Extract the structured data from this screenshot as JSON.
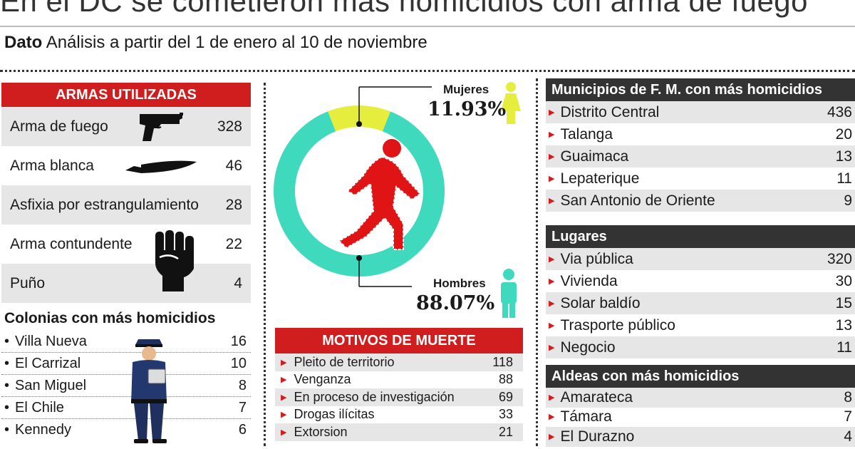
{
  "header": {
    "title": "En el DC se cometieron más homicidios con arma de fuego",
    "dato_label": "Dato",
    "dato_text": "Análisis a partir del 1 de enero al 10 de noviembre"
  },
  "armas": {
    "title": "ARMAS UTILIZADAS",
    "rows": [
      {
        "label": "Arma de fuego",
        "value": "328",
        "icon": "pistol-icon"
      },
      {
        "label": "Arma blanca",
        "value": "46",
        "icon": "knife-icon"
      },
      {
        "label": "Asfixia por estrangulamiento",
        "value": "28"
      },
      {
        "label": "Arma contundente",
        "value": "22",
        "icon": "fist-icon"
      },
      {
        "label": "Puño",
        "value": "4"
      }
    ]
  },
  "colonias": {
    "title": "Colonias con más homicidios",
    "rows": [
      {
        "label": "Villa Nueva",
        "value": "16"
      },
      {
        "label": "El Carrizal",
        "value": "10"
      },
      {
        "label": "San Miguel",
        "value": "8"
      },
      {
        "label": "El Chile",
        "value": "7"
      },
      {
        "label": "Kennedy",
        "value": "6"
      }
    ],
    "icon": "police-officer-icon"
  },
  "gender": {
    "mujeres_label": "Mujeres",
    "mujeres_pct": "11.93%",
    "hombres_label": "Hombres",
    "hombres_pct": "88.07%",
    "mujeres_color": "#e5ee3c",
    "hombres_color": "#3fd9bd",
    "center_icon": "body-outline-icon"
  },
  "chart_data": {
    "type": "pie",
    "categories": [
      "Mujeres",
      "Hombres"
    ],
    "values": [
      11.93,
      88.07
    ],
    "colors": [
      "#e5ee3c",
      "#3fd9bd"
    ]
  },
  "motivos": {
    "title": "MOTIVOS DE MUERTE",
    "rows": [
      {
        "label": "Pleito de territorio",
        "value": "118"
      },
      {
        "label": "Venganza",
        "value": "88"
      },
      {
        "label": "En proceso de investigación",
        "value": "69"
      },
      {
        "label": "Drogas ilícitas",
        "value": "33"
      },
      {
        "label": "Extorsion",
        "value": "21"
      }
    ]
  },
  "municipios": {
    "title": "Municipios de F. M. con más homicidios",
    "rows": [
      {
        "label": "Distrito Central",
        "value": "436"
      },
      {
        "label": "Talanga",
        "value": "20"
      },
      {
        "label": "Guaimaca",
        "value": "13"
      },
      {
        "label": "Lepaterique",
        "value": "11"
      },
      {
        "label": "San Antonio de Oriente",
        "value": "9"
      }
    ]
  },
  "lugares": {
    "title": "Lugares",
    "rows": [
      {
        "label": "Via pública",
        "value": "320"
      },
      {
        "label": "Vivienda",
        "value": "30"
      },
      {
        "label": "Solar baldío",
        "value": "15"
      },
      {
        "label": "Trasporte público",
        "value": "13"
      },
      {
        "label": "Negocio",
        "value": "11"
      }
    ]
  },
  "aldeas": {
    "title": "Aldeas con más homicidios",
    "rows": [
      {
        "label": "Amarateca",
        "value": "8"
      },
      {
        "label": "Támara",
        "value": "7"
      },
      {
        "label": "El Durazno",
        "value": "4"
      }
    ]
  }
}
